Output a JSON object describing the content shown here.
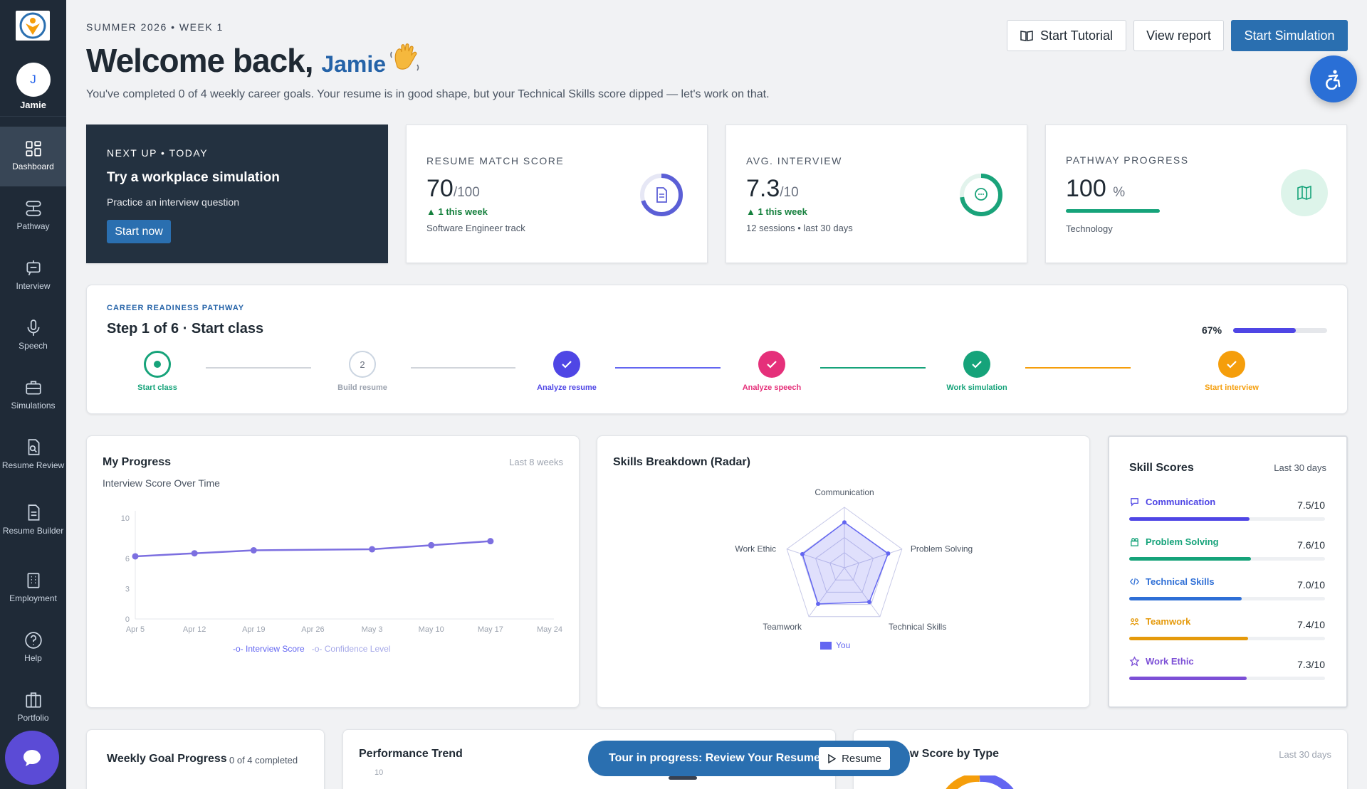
{
  "user": {
    "initial": "J",
    "name": "Jamie"
  },
  "nav": [
    {
      "label": "Dashboard",
      "icon": "dashboard-icon"
    },
    {
      "label": "Pathway",
      "icon": "pathway-icon"
    },
    {
      "label": "Interview",
      "icon": "interview-icon"
    },
    {
      "label": "Speech",
      "icon": "microphone-icon"
    },
    {
      "label": "Simulations",
      "icon": "briefcase-icon"
    },
    {
      "label": "Resume Review",
      "icon": "resume-review-icon"
    },
    {
      "label": "Resume Builder",
      "icon": "document-icon"
    },
    {
      "label": "Employment",
      "icon": "building-icon"
    },
    {
      "label": "Help",
      "icon": "help-icon"
    },
    {
      "label": "Portfolio",
      "icon": "portfolio-icon"
    }
  ],
  "header": {
    "eyebrow": "SUMMER 2026 • WEEK 1",
    "welcome": "Welcome back,",
    "name": "Jamie",
    "subtitle": "You've completed 0 of 4 weekly career goals. Your resume is in good shape, but your Technical Skills score dipped — let's work on that.",
    "start_tutorial": "Start Tutorial",
    "view_report": "View report",
    "start_simulation": "Start Simulation"
  },
  "next_up": {
    "label": "NEXT UP • TODAY",
    "title": "Try a workplace simulation",
    "subtitle": "Practice an interview question",
    "button": "Start now"
  },
  "stats": {
    "resume": {
      "label": "RESUME MATCH SCORE",
      "value": "70",
      "denom": "/100",
      "change": "▲ 1 this week",
      "note": "Software Engineer track",
      "progress": 0.7,
      "color": "#5b5fd6",
      "icon": "document-icon"
    },
    "interview": {
      "label": "AVG. INTERVIEW",
      "value": "7.3",
      "denom": "/10",
      "change": "▲ 1 this week",
      "note": "12 sessions • last 30 days",
      "progress": 0.73,
      "color": "#1aa37a",
      "icon": "chat-icon"
    },
    "pathway": {
      "label": "PATHWAY PROGRESS",
      "value": "100",
      "denom": "%",
      "note": "Technology",
      "progress": 1.0,
      "color": "#16a37a",
      "icon": "map-icon"
    }
  },
  "career": {
    "label": "CAREER READINESS PATHWAY",
    "title": "Step 1 of 6 · Start class",
    "percent": "67%",
    "progress": 0.67,
    "steps": [
      {
        "label": "Start class",
        "state": "current",
        "color": "#16a37a",
        "num": ""
      },
      {
        "label": "Build resume",
        "state": "pending",
        "color": "#9ca3af",
        "num": "2"
      },
      {
        "label": "Analyze resume",
        "state": "done",
        "color": "#4f46e5",
        "num": ""
      },
      {
        "label": "Analyze speech",
        "state": "done",
        "color": "#e5307a",
        "num": ""
      },
      {
        "label": "Work simulation",
        "state": "done",
        "color": "#16a37a",
        "num": ""
      },
      {
        "label": "Start interview",
        "state": "done",
        "color": "#f59e0b",
        "num": ""
      }
    ]
  },
  "progress_card": {
    "title": "My Progress",
    "range": "Last 8 weeks",
    "subtitle": "Interview Score Over Time",
    "legend_interview": "Interview Score",
    "legend_confidence": "Confidence Level"
  },
  "radar_card": {
    "title": "Skills Breakdown (Radar)",
    "legend": "You"
  },
  "skill_scores": {
    "title": "Skill Scores",
    "range": "Last 30 days",
    "items": [
      {
        "name": "Communication",
        "value": "7.5/10",
        "score": 7.5,
        "color": "#4f46e5",
        "icon": "chat-icon"
      },
      {
        "name": "Problem Solving",
        "value": "7.6/10",
        "score": 7.6,
        "color": "#16a37a",
        "icon": "puzzle-icon"
      },
      {
        "name": "Technical Skills",
        "value": "7.0/10",
        "score": 7.0,
        "color": "#2f6fd6",
        "icon": "code-icon"
      },
      {
        "name": "Teamwork",
        "value": "7.4/10",
        "score": 7.4,
        "color": "#e59a0b",
        "icon": "team-icon"
      },
      {
        "name": "Work Ethic",
        "value": "7.3/10",
        "score": 7.3,
        "color": "#7c4fd6",
        "icon": "star-icon"
      }
    ]
  },
  "weekly_goal": {
    "title": "Weekly Goal Progress",
    "status": "0 of 4 completed"
  },
  "performance": {
    "title": "Performance Trend",
    "ytick": "10"
  },
  "interview_type": {
    "title": "Interview Score by Type",
    "range": "Last 30 days"
  },
  "tour": {
    "text": "Tour in progress: Review Your Resume",
    "button": "Resume"
  },
  "chart_data": [
    {
      "type": "line",
      "title": "Interview Score Over Time",
      "x": [
        "Apr 5",
        "Apr 12",
        "Apr 19",
        "Apr 26",
        "May 3",
        "May 10",
        "May 17",
        "May 24"
      ],
      "yticks": [
        0,
        3,
        6,
        10
      ],
      "ylim": [
        0,
        10
      ],
      "series": [
        {
          "name": "Interview Score",
          "values": [
            6.2,
            6.5,
            6.8,
            null,
            6.9,
            7.3,
            7.7,
            null
          ]
        }
      ],
      "legend": [
        "Interview Score",
        "Confidence Level"
      ]
    },
    {
      "type": "radar",
      "categories": [
        "Communication",
        "Problem Solving",
        "Technical Skills",
        "Teamwork",
        "Work Ethic"
      ],
      "max": 10,
      "series": [
        {
          "name": "You",
          "values": [
            7.5,
            7.6,
            7.0,
            7.4,
            7.3
          ]
        }
      ]
    }
  ]
}
